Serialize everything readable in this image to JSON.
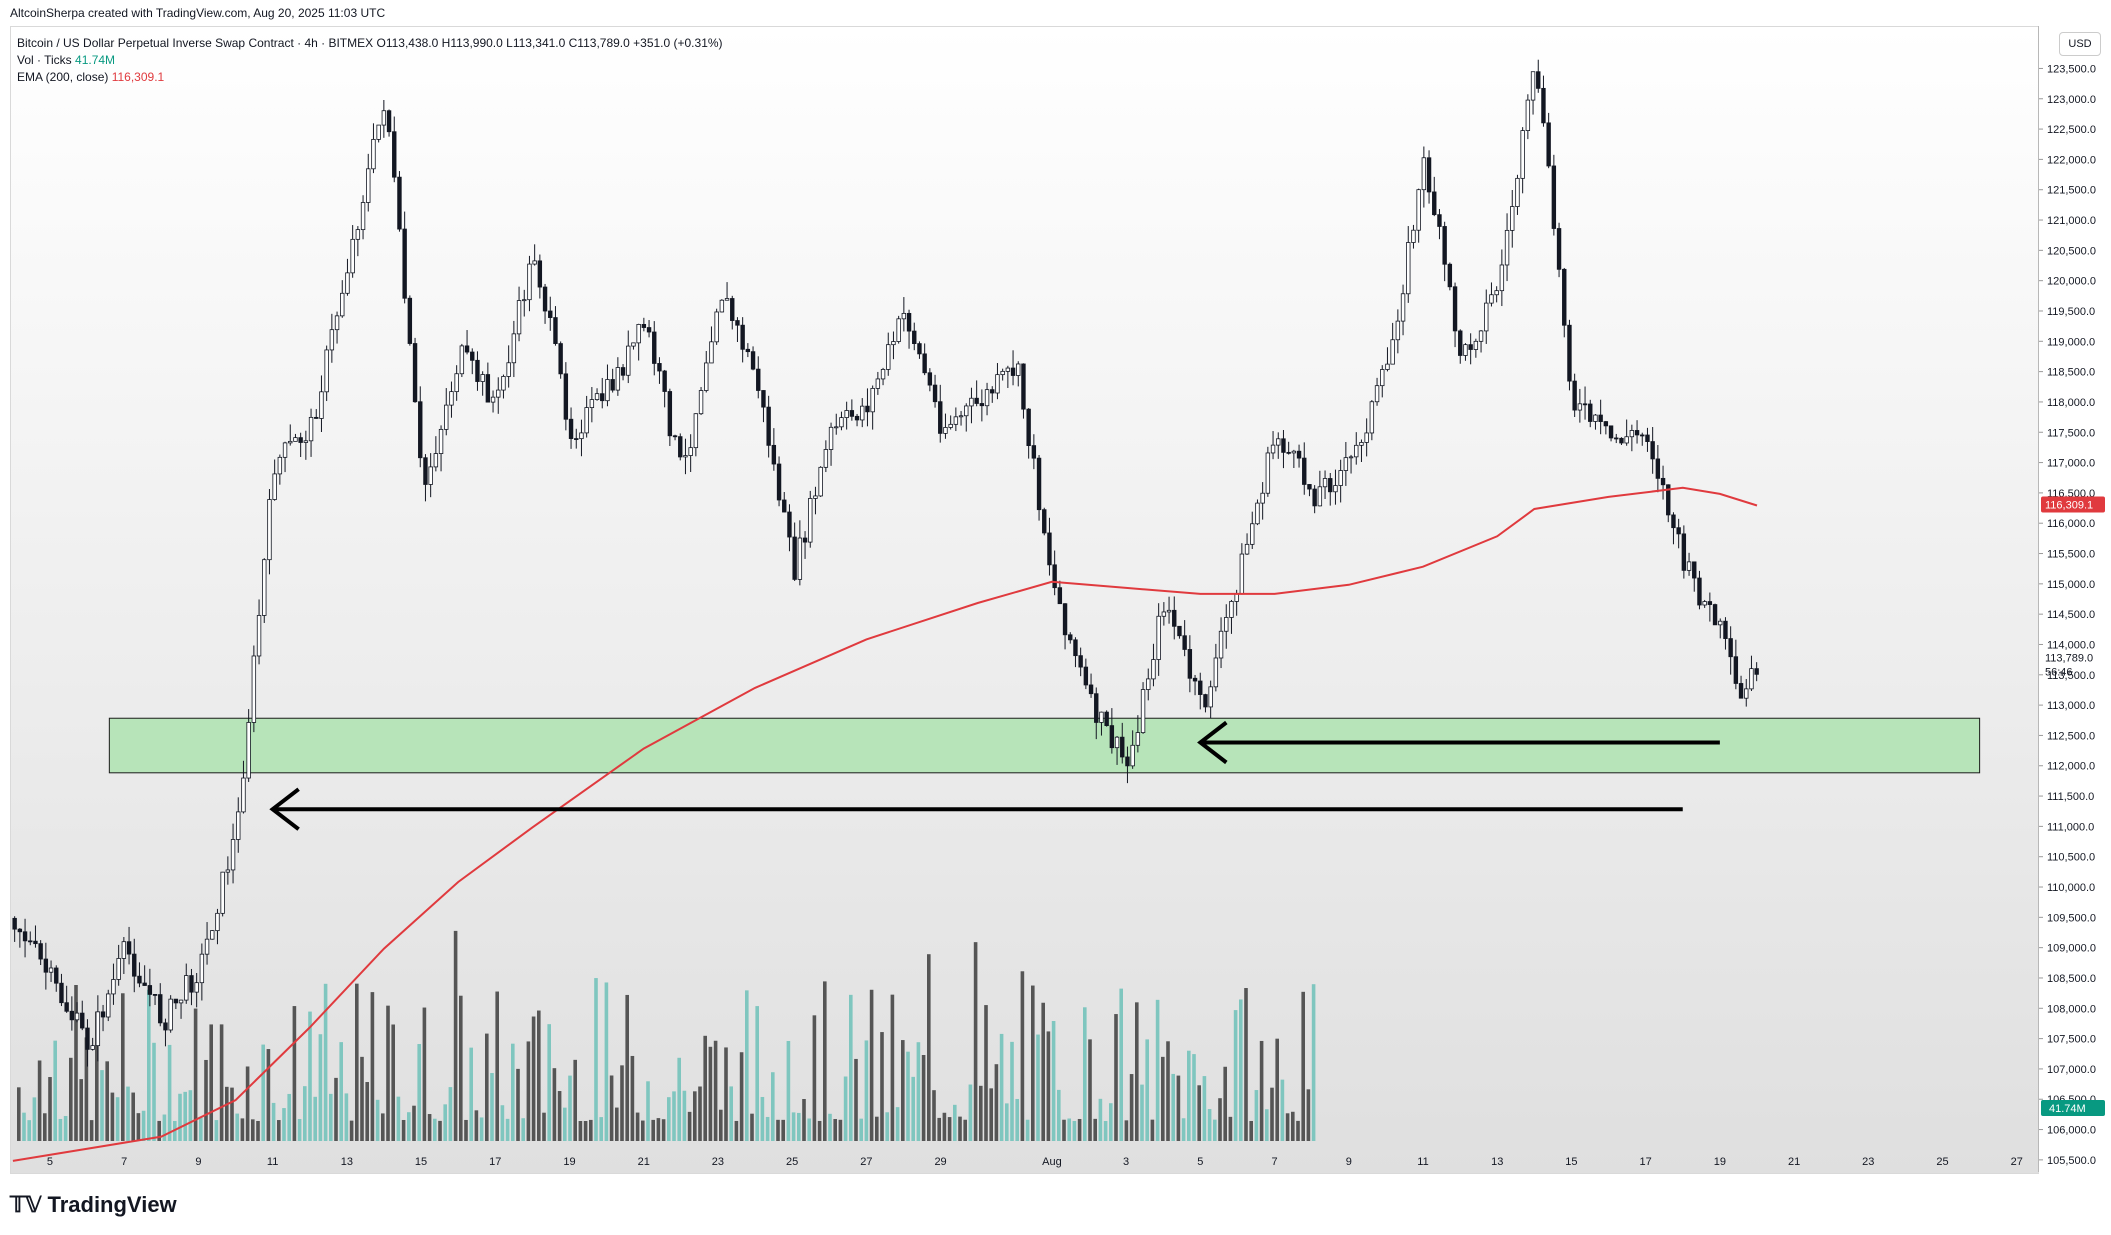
{
  "header": {
    "created_by": "AltcoinSherpa created with TradingView.com, Aug 20, 2025 11:03 UTC"
  },
  "legend": {
    "symbol_line": "Bitcoin / US Dollar Perpetual Inverse Swap Contract · 4h · BITMEX",
    "ohlc": "O113,438.0  H113,990.0  L113,341.0  C113,789.0  +351.0 (+0.31%)",
    "vol_label": "Vol · Ticks",
    "vol_value": "41.74M",
    "ema_label": "EMA (200, close)",
    "ema_value": "116,309.1"
  },
  "price_scale": {
    "currency": "USD",
    "ticks": [
      "123,500.0",
      "123,000.0",
      "122,500.0",
      "122,000.0",
      "121,500.0",
      "121,000.0",
      "120,500.0",
      "120,000.0",
      "119,500.0",
      "119,000.0",
      "118,500.0",
      "118,000.0",
      "117,500.0",
      "117,000.0",
      "116,500.0",
      "116,000.0",
      "115,500.0",
      "115,000.0",
      "114,500.0",
      "114,000.0",
      "113,500.0",
      "113,000.0",
      "112,500.0",
      "112,000.0",
      "111,500.0",
      "111,000.0",
      "110,500.0",
      "110,000.0",
      "109,500.0",
      "109,000.0",
      "108,500.0",
      "108,000.0",
      "107,500.0",
      "107,000.0",
      "106,500.0",
      "106,000.0",
      "105,500.0"
    ],
    "ema_tag": "116,309.1",
    "last_price_tag": "113,789.0",
    "countdown": "56:46",
    "volume_tag": "41.74M"
  },
  "time_axis": [
    "5",
    "7",
    "9",
    "11",
    "13",
    "15",
    "17",
    "19",
    "21",
    "23",
    "25",
    "27",
    "29",
    "Aug",
    "3",
    "5",
    "7",
    "9",
    "11",
    "13",
    "15",
    "17",
    "19",
    "21",
    "23",
    "25",
    "27"
  ],
  "footer": {
    "brand": "TradingView"
  },
  "colors": {
    "up": "#089981",
    "down": "#131722",
    "ema": "#e03a3e",
    "zone": "#b7e4b9",
    "vol_up": "#7fc6bf",
    "vol_down": "#555555"
  },
  "chart_data": {
    "type": "candlestick",
    "interval": "4h",
    "ylim": [
      105300,
      124200
    ],
    "support_zone": [
      111900,
      112800
    ],
    "arrows": [
      {
        "from_x": "Aug 19",
        "to_x": "Aug 5",
        "y": 112400
      },
      {
        "from_x": "Aug 18",
        "to_x": "Jul 11",
        "y": 111300
      }
    ],
    "swing_points": [
      {
        "x": "Jul 4",
        "price": 109500
      },
      {
        "x": "Jul 6",
        "price": 107400
      },
      {
        "x": "Jul 7",
        "price": 109000
      },
      {
        "x": "Jul 8",
        "price": 107800
      },
      {
        "x": "Jul 9",
        "price": 108700
      },
      {
        "x": "Jul 10",
        "price": 111000
      },
      {
        "x": "Jul 11",
        "price": 117000
      },
      {
        "x": "Jul 12",
        "price": 117600
      },
      {
        "x": "Jul 14",
        "price": 123100
      },
      {
        "x": "Jul 15",
        "price": 116500
      },
      {
        "x": "Jul 16",
        "price": 118800
      },
      {
        "x": "Jul 17",
        "price": 118000
      },
      {
        "x": "Jul 18",
        "price": 120500
      },
      {
        "x": "Jul 19",
        "price": 117500
      },
      {
        "x": "Jul 20",
        "price": 118200
      },
      {
        "x": "Jul 21",
        "price": 119300
      },
      {
        "x": "Jul 22",
        "price": 116800
      },
      {
        "x": "Jul 23",
        "price": 119900
      },
      {
        "x": "Jul 24",
        "price": 118400
      },
      {
        "x": "Jul 25",
        "price": 115200
      },
      {
        "x": "Jul 26",
        "price": 117500
      },
      {
        "x": "Jul 27",
        "price": 118000
      },
      {
        "x": "Jul 28",
        "price": 119500
      },
      {
        "x": "Jul 29",
        "price": 117600
      },
      {
        "x": "Jul 30",
        "price": 118000
      },
      {
        "x": "Jul 31",
        "price": 118600
      },
      {
        "x": "Aug 1",
        "price": 115000
      },
      {
        "x": "Aug 2",
        "price": 113000
      },
      {
        "x": "Aug 3",
        "price": 112000
      },
      {
        "x": "Aug 4",
        "price": 114800
      },
      {
        "x": "Aug 5",
        "price": 112900
      },
      {
        "x": "Aug 6",
        "price": 115200
      },
      {
        "x": "Aug 7",
        "price": 117500
      },
      {
        "x": "Aug 8",
        "price": 116500
      },
      {
        "x": "Aug 9",
        "price": 117000
      },
      {
        "x": "Aug 10",
        "price": 118600
      },
      {
        "x": "Aug 11",
        "price": 122000
      },
      {
        "x": "Aug 12",
        "price": 118700
      },
      {
        "x": "Aug 13",
        "price": 120000
      },
      {
        "x": "Aug 14",
        "price": 123600
      },
      {
        "x": "Aug 15",
        "price": 118000
      },
      {
        "x": "Aug 16",
        "price": 117400
      },
      {
        "x": "Aug 17",
        "price": 117500
      },
      {
        "x": "Aug 18",
        "price": 115300
      },
      {
        "x": "Aug 19",
        "price": 114200
      },
      {
        "x": "Aug 19.5",
        "price": 113000
      },
      {
        "x": "Aug 20",
        "price": 113789
      }
    ],
    "ema_points": [
      {
        "x": "Jul 4",
        "price": 105500
      },
      {
        "x": "Jul 8",
        "price": 105900
      },
      {
        "x": "Jul 10",
        "price": 106500
      },
      {
        "x": "Jul 12",
        "price": 107700
      },
      {
        "x": "Jul 14",
        "price": 109000
      },
      {
        "x": "Jul 16",
        "price": 110100
      },
      {
        "x": "Jul 18",
        "price": 111000
      },
      {
        "x": "Jul 21",
        "price": 112300
      },
      {
        "x": "Jul 24",
        "price": 113300
      },
      {
        "x": "Jul 27",
        "price": 114100
      },
      {
        "x": "Jul 30",
        "price": 114700
      },
      {
        "x": "Aug 1",
        "price": 115050
      },
      {
        "x": "Aug 3",
        "price": 114950
      },
      {
        "x": "Aug 5",
        "price": 114850
      },
      {
        "x": "Aug 7",
        "price": 114850
      },
      {
        "x": "Aug 9",
        "price": 115000
      },
      {
        "x": "Aug 11",
        "price": 115300
      },
      {
        "x": "Aug 13",
        "price": 115800
      },
      {
        "x": "Aug 14",
        "price": 116250
      },
      {
        "x": "Aug 16",
        "price": 116450
      },
      {
        "x": "Aug 18",
        "price": 116600
      },
      {
        "x": "Aug 19",
        "price": 116500
      },
      {
        "x": "Aug 20",
        "price": 116309
      }
    ]
  }
}
